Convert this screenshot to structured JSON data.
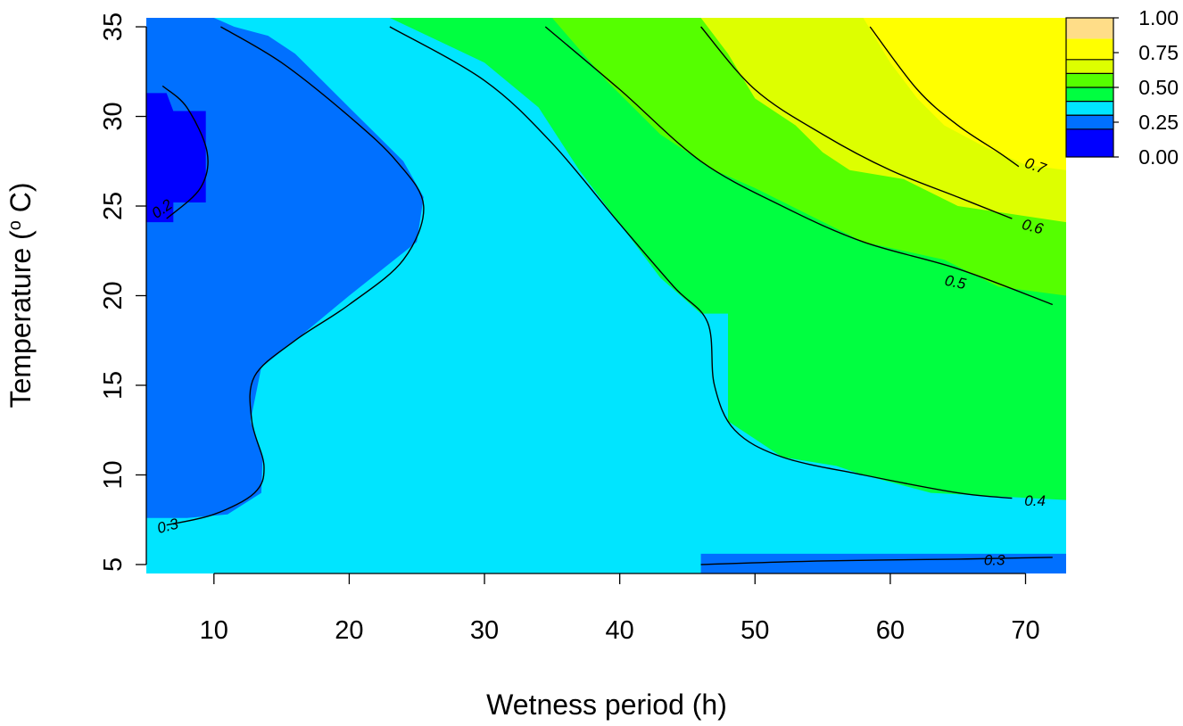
{
  "chart_data": {
    "type": "heatmap",
    "title": "",
    "xlabel": "Wetness period (h)",
    "ylabel_text": "Temperature (",
    "ylabel_sup": "o",
    "ylabel_unit": " C)",
    "xlim": [
      5,
      73
    ],
    "ylim": [
      4.5,
      35.5
    ],
    "x_ticks": [
      10,
      20,
      30,
      40,
      50,
      60,
      70
    ],
    "y_ticks": [
      5,
      10,
      15,
      20,
      25,
      30,
      35
    ],
    "grid": false,
    "color_scale": {
      "position": "top-right",
      "breaks": [
        0.0,
        0.25,
        0.5,
        0.75,
        1.0
      ],
      "labels": [
        "0.00",
        "0.25",
        "0.50",
        "0.75",
        "1.00"
      ],
      "colors": [
        {
          "from": 0.0,
          "to": 0.2,
          "color": "#0000ff"
        },
        {
          "from": 0.2,
          "to": 0.3,
          "color": "#0070ff"
        },
        {
          "from": 0.3,
          "to": 0.4,
          "color": "#00e5ff"
        },
        {
          "from": 0.4,
          "to": 0.5,
          "color": "#00ff40"
        },
        {
          "from": 0.5,
          "to": 0.6,
          "color": "#55ff00"
        },
        {
          "from": 0.6,
          "to": 0.7,
          "color": "#ddff00"
        },
        {
          "from": 0.7,
          "to": 0.85,
          "color": "#ffff00"
        },
        {
          "from": 0.85,
          "to": 1.0,
          "color": "#ffdd88"
        }
      ]
    },
    "contours": [
      {
        "level": 0.2,
        "label": "0.2",
        "points": [
          [
            6.2,
            31.7
          ],
          [
            8,
            30.5
          ],
          [
            9.5,
            28
          ],
          [
            9,
            26
          ],
          [
            6.5,
            24.3
          ]
        ]
      },
      {
        "level": 0.3,
        "label": "0.3",
        "points": [
          [
            10.5,
            35
          ],
          [
            15,
            33
          ],
          [
            20,
            30
          ],
          [
            23.5,
            27.5
          ],
          [
            25.5,
            25
          ],
          [
            24,
            22
          ],
          [
            20,
            19.5
          ],
          [
            16,
            17.5
          ],
          [
            13,
            15.5
          ],
          [
            12.8,
            13
          ],
          [
            13.7,
            10.5
          ],
          [
            13,
            9
          ],
          [
            10,
            7.8
          ],
          [
            6.5,
            7.2
          ]
        ]
      },
      {
        "level": 0.3,
        "label": "0.3",
        "points": [
          [
            46,
            5
          ],
          [
            55,
            5.2
          ],
          [
            65,
            5.3
          ],
          [
            72,
            5.4
          ]
        ]
      },
      {
        "level": 0.4,
        "label": "0.4",
        "points": [
          [
            23,
            35
          ],
          [
            30,
            32
          ],
          [
            35,
            28.5
          ],
          [
            40,
            24
          ],
          [
            44,
            20.5
          ],
          [
            46.5,
            18.5
          ],
          [
            47,
            15
          ],
          [
            48.5,
            12.5
          ],
          [
            52,
            11
          ],
          [
            58,
            10
          ],
          [
            65,
            9
          ],
          [
            69,
            8.7
          ]
        ]
      },
      {
        "level": 0.5,
        "label": "0.5",
        "points": [
          [
            34.5,
            35
          ],
          [
            40,
            31.5
          ],
          [
            46,
            27.5
          ],
          [
            52,
            25
          ],
          [
            58,
            23
          ],
          [
            65,
            21.5
          ],
          [
            72,
            19.5
          ]
        ]
      },
      {
        "level": 0.6,
        "label": "0.6",
        "points": [
          [
            46,
            35
          ],
          [
            50,
            31.5
          ],
          [
            55,
            29
          ],
          [
            60,
            27
          ],
          [
            65,
            25.5
          ],
          [
            69,
            24.3
          ]
        ]
      },
      {
        "level": 0.7,
        "label": "0.7",
        "points": [
          [
            58.5,
            35
          ],
          [
            62,
            31.5
          ],
          [
            65,
            29.5
          ],
          [
            68,
            28
          ],
          [
            69.5,
            27.2
          ]
        ]
      }
    ],
    "contour_labels": [
      {
        "label": "0.2",
        "x": 6.2,
        "y": 24.8,
        "angle": -35
      },
      {
        "label": "0.3",
        "x": 6.6,
        "y": 7.1,
        "angle": -15
      },
      {
        "label": "0.3",
        "x": 67.7,
        "y": 5.2,
        "angle": 0
      },
      {
        "label": "0.4",
        "x": 70.7,
        "y": 8.5,
        "angle": 0
      },
      {
        "label": "0.5",
        "x": 64.8,
        "y": 20.7,
        "angle": 12
      },
      {
        "label": "0.6",
        "x": 70.5,
        "y": 23.8,
        "angle": 15
      },
      {
        "label": "0.7",
        "x": 70.7,
        "y": 27.2,
        "angle": 20
      }
    ],
    "regions": [
      {
        "value": 0.25,
        "points": [
          [
            5,
            35.5
          ],
          [
            10,
            35.5
          ],
          [
            11.5,
            35
          ],
          [
            14,
            34.5
          ],
          [
            16,
            33.5
          ],
          [
            18,
            32
          ],
          [
            20,
            30.5
          ],
          [
            22,
            29
          ],
          [
            24,
            27.5
          ],
          [
            25.5,
            25.5
          ],
          [
            25,
            23
          ],
          [
            22.5,
            21.5
          ],
          [
            20,
            20
          ],
          [
            16,
            17.5
          ],
          [
            13.5,
            16
          ],
          [
            12.7,
            13
          ],
          [
            13.6,
            11
          ],
          [
            13.5,
            9
          ],
          [
            11,
            7.8
          ],
          [
            8,
            7.6
          ],
          [
            5,
            7.6
          ]
        ]
      },
      {
        "value": 0.15,
        "points": [
          [
            5,
            31.3
          ],
          [
            6.5,
            31.3
          ],
          [
            7,
            30.3
          ],
          [
            9.4,
            30.3
          ],
          [
            9.4,
            25.2
          ],
          [
            7,
            25.2
          ],
          [
            7,
            24.1
          ],
          [
            5,
            24.1
          ]
        ]
      },
      {
        "value": 0.45,
        "points": [
          [
            23,
            35.5
          ],
          [
            30,
            33
          ],
          [
            34,
            30.5
          ],
          [
            37,
            27
          ],
          [
            40,
            24
          ],
          [
            43,
            21
          ],
          [
            46,
            19
          ],
          [
            48,
            19
          ],
          [
            48,
            13
          ],
          [
            50,
            12
          ],
          [
            52,
            11
          ],
          [
            56,
            10.5
          ],
          [
            58,
            10
          ],
          [
            63,
            9
          ],
          [
            73,
            8.6
          ],
          [
            73,
            35.5
          ]
        ]
      },
      {
        "value": 0.55,
        "points": [
          [
            35,
            35.5
          ],
          [
            39,
            32
          ],
          [
            43,
            29
          ],
          [
            47,
            27
          ],
          [
            50,
            26
          ],
          [
            54,
            24.5
          ],
          [
            58,
            23
          ],
          [
            64,
            22
          ],
          [
            68,
            20.5
          ],
          [
            73,
            20
          ],
          [
            73,
            35.5
          ]
        ]
      },
      {
        "value": 0.65,
        "points": [
          [
            46,
            35.5
          ],
          [
            48,
            33.5
          ],
          [
            50,
            31
          ],
          [
            53,
            29.5
          ],
          [
            55,
            28
          ],
          [
            57,
            27
          ],
          [
            61,
            26.5
          ],
          [
            65,
            25
          ],
          [
            73,
            24.1
          ],
          [
            73,
            35.5
          ]
        ]
      },
      {
        "value": 0.75,
        "points": [
          [
            58,
            35.5
          ],
          [
            60,
            33
          ],
          [
            62,
            31
          ],
          [
            64,
            29.5
          ],
          [
            67,
            28.3
          ],
          [
            70,
            27.3
          ],
          [
            73,
            27
          ],
          [
            73,
            35.5
          ]
        ]
      },
      {
        "value": 0.25,
        "points": [
          [
            46,
            5.6
          ],
          [
            73,
            5.6
          ],
          [
            73,
            4.5
          ],
          [
            46,
            4.5
          ]
        ]
      }
    ]
  }
}
